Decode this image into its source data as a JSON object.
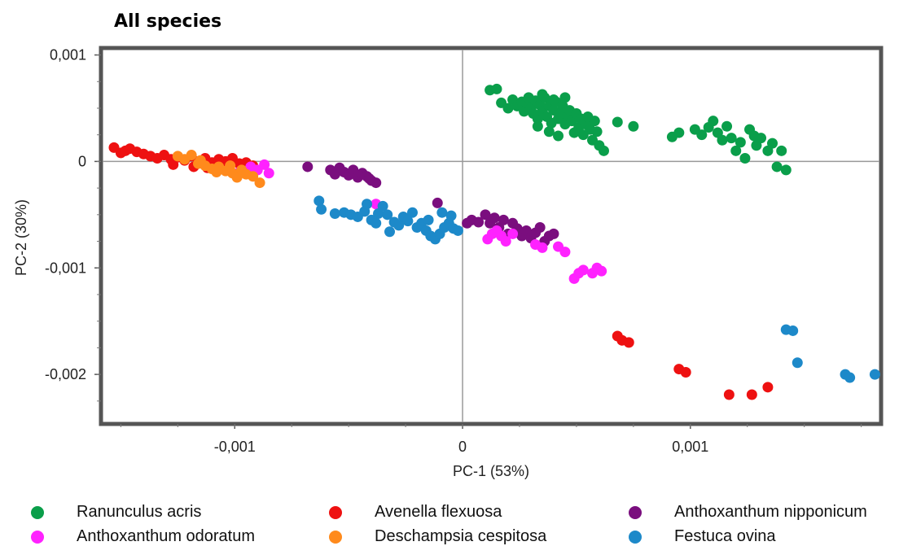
{
  "chart_data": {
    "type": "scatter",
    "title": "All species",
    "xlabel": "PC-1 (53%)",
    "ylabel": "PC-2 (30%)",
    "xlim": [
      -0.00158,
      0.00183
    ],
    "ylim": [
      -0.00245,
      0.00105
    ],
    "x_ticks": [
      {
        "value": -0.001,
        "label": "-0,001"
      },
      {
        "value": 0,
        "label": "0"
      },
      {
        "value": 0.001,
        "label": "0,001"
      }
    ],
    "y_ticks": [
      {
        "value": 0.001,
        "label": "0,001"
      },
      {
        "value": 0,
        "label": "0"
      },
      {
        "value": -0.001,
        "label": "-0,001"
      },
      {
        "value": -0.002,
        "label": "-0,002"
      }
    ],
    "grid": false,
    "zero_lines": true,
    "legend_position": "bottom",
    "series": [
      {
        "name": "Ranunculus acris",
        "color": "#0a9e4a",
        "points": [
          [
            0.00012,
            0.00067
          ],
          [
            0.00015,
            0.00068
          ],
          [
            0.00017,
            0.00055
          ],
          [
            0.0002,
            0.0005
          ],
          [
            0.00022,
            0.00058
          ],
          [
            0.00024,
            0.00052
          ],
          [
            0.00026,
            0.00056
          ],
          [
            0.00027,
            0.00047
          ],
          [
            0.00028,
            0.00055
          ],
          [
            0.00029,
            0.0006
          ],
          [
            0.0003,
            0.0005
          ],
          [
            0.00031,
            0.00045
          ],
          [
            0.00032,
            0.00057
          ],
          [
            0.00033,
            0.0004
          ],
          [
            0.00034,
            0.00053
          ],
          [
            0.00035,
            0.00047
          ],
          [
            0.00036,
            0.0006
          ],
          [
            0.00037,
            0.00042
          ],
          [
            0.00038,
            0.00052
          ],
          [
            0.00039,
            0.00036
          ],
          [
            0.0004,
            0.00048
          ],
          [
            0.00041,
            0.00056
          ],
          [
            0.00042,
            0.0004
          ],
          [
            0.00043,
            0.00045
          ],
          [
            0.00044,
            0.00052
          ],
          [
            0.00045,
            0.00035
          ],
          [
            0.00046,
            0.00043
          ],
          [
            0.00047,
            0.00048
          ],
          [
            0.00048,
            0.00038
          ],
          [
            0.0005,
            0.00045
          ],
          [
            0.00051,
            0.00032
          ],
          [
            0.00052,
            0.0004
          ],
          [
            0.00053,
            0.00025
          ],
          [
            0.00054,
            0.00035
          ],
          [
            0.00055,
            0.00042
          ],
          [
            0.00056,
            0.0003
          ],
          [
            0.00057,
            0.0002
          ],
          [
            0.00058,
            0.00038
          ],
          [
            0.00059,
            0.00028
          ],
          [
            0.0006,
            0.00015
          ],
          [
            0.00062,
            0.0001
          ],
          [
            0.00035,
            0.00063
          ],
          [
            0.0004,
            0.00058
          ],
          [
            0.00045,
            0.0006
          ],
          [
            0.00038,
            0.00028
          ],
          [
            0.00033,
            0.00033
          ],
          [
            0.00042,
            0.00024
          ],
          [
            0.00049,
            0.00027
          ],
          [
            0.00068,
            0.00037
          ],
          [
            0.00075,
            0.00033
          ],
          [
            0.00092,
            0.00023
          ],
          [
            0.00095,
            0.00027
          ],
          [
            0.00102,
            0.0003
          ],
          [
            0.00105,
            0.00025
          ],
          [
            0.00108,
            0.00032
          ],
          [
            0.0011,
            0.00038
          ],
          [
            0.00112,
            0.00027
          ],
          [
            0.00114,
            0.0002
          ],
          [
            0.00116,
            0.00033
          ],
          [
            0.00118,
            0.00022
          ],
          [
            0.0012,
            0.0001
          ],
          [
            0.00122,
            0.00018
          ],
          [
            0.00124,
            3e-05
          ],
          [
            0.00126,
            0.0003
          ],
          [
            0.00128,
            0.00024
          ],
          [
            0.00129,
            0.00015
          ],
          [
            0.00131,
            0.00022
          ],
          [
            0.00134,
            0.0001
          ],
          [
            0.00136,
            0.00017
          ],
          [
            0.00138,
            -5e-05
          ],
          [
            0.0014,
            0.0001
          ],
          [
            0.00142,
            -8e-05
          ]
        ]
      },
      {
        "name": "Avenella flexuosa",
        "color": "#ee1111",
        "points": [
          [
            -0.00153,
            0.00013
          ],
          [
            -0.0015,
            8e-05
          ],
          [
            -0.00148,
            0.0001
          ],
          [
            -0.00146,
            0.00012
          ],
          [
            -0.00143,
            9e-05
          ],
          [
            -0.0014,
            7e-05
          ],
          [
            -0.00137,
            5e-05
          ],
          [
            -0.00134,
            3e-05
          ],
          [
            -0.00131,
            6e-05
          ],
          [
            -0.00128,
            2e-05
          ],
          [
            -0.00125,
            4e-05
          ],
          [
            -0.00122,
            1e-05
          ],
          [
            -0.00119,
            5e-05
          ],
          [
            -0.00116,
            0.0
          ],
          [
            -0.00113,
            3e-05
          ],
          [
            -0.0011,
            -1e-05
          ],
          [
            -0.00107,
            2e-05
          ],
          [
            -0.00104,
            0.0
          ],
          [
            -0.00101,
            3e-05
          ],
          [
            -0.00098,
            -2e-05
          ],
          [
            -0.00095,
            -1e-05
          ],
          [
            -0.00092,
            -4e-05
          ],
          [
            -0.00118,
            -5e-05
          ],
          [
            -0.00112,
            -6e-05
          ],
          [
            -0.00106,
            -4e-05
          ],
          [
            -0.00127,
            -3e-05
          ],
          [
            0.00068,
            -0.00164
          ],
          [
            0.0007,
            -0.00168
          ],
          [
            0.00073,
            -0.0017
          ],
          [
            0.00095,
            -0.00195
          ],
          [
            0.00098,
            -0.00198
          ],
          [
            0.00117,
            -0.00219
          ],
          [
            0.00127,
            -0.00219
          ],
          [
            0.00134,
            -0.00212
          ]
        ]
      },
      {
        "name": "Anthoxanthum nipponicum",
        "color": "#7a0e7e",
        "points": [
          [
            -0.00068,
            -5e-05
          ],
          [
            -0.00058,
            -8e-05
          ],
          [
            -0.00056,
            -0.00012
          ],
          [
            -0.00054,
            -6e-05
          ],
          [
            -0.00052,
            -0.0001
          ],
          [
            -0.0005,
            -0.00013
          ],
          [
            -0.00048,
            -8e-05
          ],
          [
            -0.00046,
            -0.00015
          ],
          [
            -0.00044,
            -0.00011
          ],
          [
            -0.00042,
            -0.00014
          ],
          [
            -0.0004,
            -0.00018
          ],
          [
            -0.00038,
            -0.0002
          ],
          [
            -0.00041,
            -0.00016
          ],
          [
            -0.00011,
            -0.00039
          ],
          [
            2e-05,
            -0.00058
          ],
          [
            4e-05,
            -0.00055
          ],
          [
            7e-05,
            -0.00057
          ],
          [
            0.0001,
            -0.0005
          ],
          [
            0.00012,
            -0.00058
          ],
          [
            0.00014,
            -0.00053
          ],
          [
            0.00016,
            -0.00062
          ],
          [
            0.00018,
            -0.00055
          ],
          [
            0.0002,
            -0.00068
          ],
          [
            0.00022,
            -0.00058
          ],
          [
            0.00024,
            -0.00063
          ],
          [
            0.00026,
            -0.0007
          ],
          [
            0.00028,
            -0.00065
          ],
          [
            0.0003,
            -0.00072
          ],
          [
            0.00032,
            -0.00067
          ],
          [
            0.00034,
            -0.00062
          ],
          [
            0.00036,
            -0.00075
          ],
          [
            0.00038,
            -0.0007
          ],
          [
            0.0004,
            -0.00068
          ]
        ]
      },
      {
        "name": "Anthoxanthum odoratum",
        "color": "#ff22ff",
        "points": [
          [
            -0.00098,
            -0.0001
          ],
          [
            -0.00093,
            -5e-05
          ],
          [
            -0.0009,
            -8e-05
          ],
          [
            -0.00087,
            -3e-05
          ],
          [
            -0.00085,
            -0.00011
          ],
          [
            -0.00038,
            -0.0004
          ],
          [
            0.00011,
            -0.00073
          ],
          [
            0.00013,
            -0.00068
          ],
          [
            0.00015,
            -0.00065
          ],
          [
            0.00017,
            -0.0007
          ],
          [
            0.00019,
            -0.00075
          ],
          [
            0.00022,
            -0.00068
          ],
          [
            0.00032,
            -0.00078
          ],
          [
            0.00035,
            -0.00081
          ],
          [
            0.00042,
            -0.0008
          ],
          [
            0.00045,
            -0.00085
          ],
          [
            0.00049,
            -0.0011
          ],
          [
            0.00051,
            -0.00105
          ],
          [
            0.00053,
            -0.00102
          ],
          [
            0.00057,
            -0.00105
          ],
          [
            0.00059,
            -0.001
          ],
          [
            0.00061,
            -0.00103
          ]
        ]
      },
      {
        "name": "Deschampsia cespitosa",
        "color": "#ff8a1c",
        "points": [
          [
            -0.00125,
            5e-05
          ],
          [
            -0.00122,
            2e-05
          ],
          [
            -0.00119,
            6e-05
          ],
          [
            -0.00116,
            -2e-05
          ],
          [
            -0.00113,
            -4e-05
          ],
          [
            -0.0011,
            -7e-05
          ],
          [
            -0.00107,
            -5e-05
          ],
          [
            -0.00104,
            -9e-05
          ],
          [
            -0.00101,
            -0.00011
          ],
          [
            -0.00099,
            -0.00015
          ],
          [
            -0.00097,
            -8e-05
          ],
          [
            -0.00095,
            -0.00012
          ],
          [
            -0.00092,
            -0.00014
          ],
          [
            -0.00089,
            -0.0002
          ],
          [
            -0.00115,
            1e-05
          ],
          [
            -0.00108,
            -0.0001
          ],
          [
            -0.00102,
            -4e-05
          ]
        ]
      },
      {
        "name": "Festuca ovina",
        "color": "#1d89c9",
        "points": [
          [
            -0.00063,
            -0.00037
          ],
          [
            -0.00062,
            -0.00045
          ],
          [
            -0.00056,
            -0.00049
          ],
          [
            -0.00052,
            -0.00048
          ],
          [
            -0.00049,
            -0.0005
          ],
          [
            -0.00046,
            -0.00052
          ],
          [
            -0.00043,
            -0.00047
          ],
          [
            -0.0004,
            -0.00055
          ],
          [
            -0.00037,
            -0.00049
          ],
          [
            -0.00035,
            -0.00042
          ],
          [
            -0.00033,
            -0.0005
          ],
          [
            -0.0003,
            -0.00057
          ],
          [
            -0.00028,
            -0.0006
          ],
          [
            -0.00026,
            -0.00052
          ],
          [
            -0.00024,
            -0.00056
          ],
          [
            -0.00022,
            -0.00048
          ],
          [
            -0.0002,
            -0.00062
          ],
          [
            -0.00018,
            -0.00058
          ],
          [
            -0.00016,
            -0.00065
          ],
          [
            -0.00014,
            -0.0007
          ],
          [
            -0.00012,
            -0.00073
          ],
          [
            -0.0001,
            -0.00068
          ],
          [
            -8e-05,
            -0.00062
          ],
          [
            -6e-05,
            -0.00058
          ],
          [
            -4e-05,
            -0.00063
          ],
          [
            -2e-05,
            -0.00065
          ],
          [
            -0.00032,
            -0.00066
          ],
          [
            -0.00038,
            -0.00058
          ],
          [
            -0.00042,
            -0.0004
          ],
          [
            -0.00015,
            -0.00055
          ],
          [
            -5e-05,
            -0.00051
          ],
          [
            -9e-05,
            -0.00048
          ],
          [
            0.00142,
            -0.00158
          ],
          [
            0.00145,
            -0.00159
          ],
          [
            0.00147,
            -0.00189
          ],
          [
            0.00168,
            -0.002
          ],
          [
            0.0017,
            -0.00203
          ],
          [
            0.00181,
            -0.002
          ]
        ]
      }
    ]
  },
  "legend": [
    {
      "label": "Ranunculus acris",
      "color": "#0a9e4a"
    },
    {
      "label": "Avenella flexuosa",
      "color": "#ee1111"
    },
    {
      "label": "Anthoxanthum nipponicum",
      "color": "#7a0e7e"
    },
    {
      "label": "Anthoxanthum odoratum",
      "color": "#ff22ff"
    },
    {
      "label": "Deschampsia cespitosa",
      "color": "#ff8a1c"
    },
    {
      "label": "Festuca ovina",
      "color": "#1d89c9"
    }
  ]
}
